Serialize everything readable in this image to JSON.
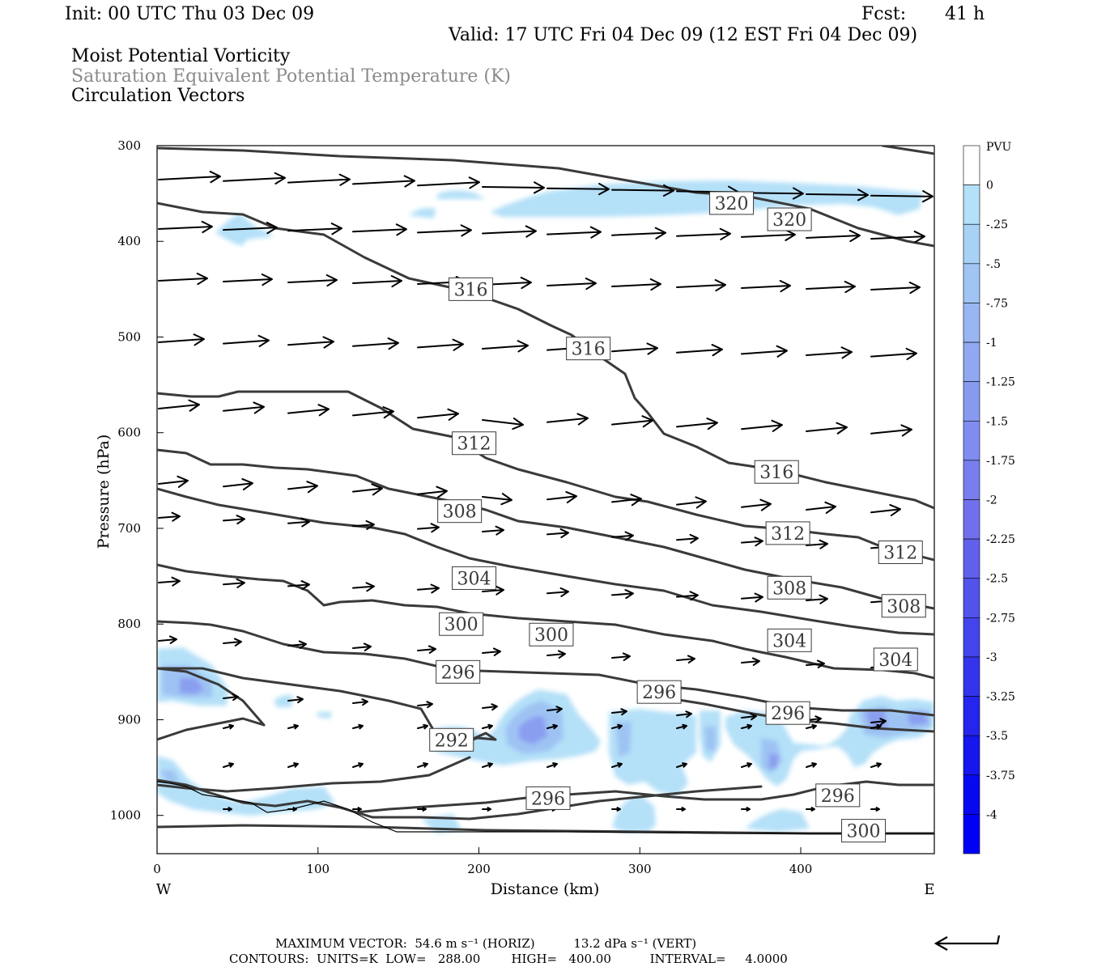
{
  "header": {
    "init": "Init: 00 UTC Thu 03 Dec 09",
    "fcst_label": "Fcst:",
    "fcst_value": "41 h",
    "valid": "Valid: 17 UTC Fri 04 Dec 09 (12 EST Fri 04 Dec 09)",
    "field1": "Moist Potential Vorticity",
    "field2": "Saturation Equivalent Potential Temperature (K)",
    "field3": "Circulation Vectors"
  },
  "footer": {
    "max_vector": "MAXIMUM VECTOR:  54.6 m s⁻¹ (HORIZ)          13.2 dPa s⁻¹ (VERT)",
    "contours": "CONTOURS:  UNITS=K  LOW=   288.00        HIGH=   400.00          INTERVAL=     4.0000"
  },
  "colors": {
    "contour": "#3a3a3a",
    "shade_light": "#b4e0f8",
    "shade_mid": "#9ec3f3",
    "shade_dark": "#8a9ef0"
  },
  "chart_data": {
    "type": "cross-section",
    "xlabel": "Distance (km)",
    "ylabel": "Pressure (hPa)",
    "x_range": [
      0,
      483
    ],
    "y_range": [
      1040,
      300
    ],
    "x_ticks": [
      0,
      100,
      200,
      300,
      400
    ],
    "y_ticks": [
      300,
      400,
      500,
      600,
      700,
      800,
      900,
      1000
    ],
    "x_end_labels": [
      "W",
      "E"
    ],
    "colorbar": {
      "unit": "PVU",
      "labels": [
        "0",
        "-.25",
        "-.5",
        "-.75",
        "-1",
        "-1.25",
        "-1.5",
        "-1.75",
        "-2",
        "-2.25",
        "-2.5",
        "-2.75",
        "-3",
        "-3.25",
        "-3.5",
        "-3.75",
        "-4"
      ],
      "colors": [
        "#ffffff",
        "#b4e0f8",
        "#a8d2f5",
        "#a0c4f3",
        "#98b6f2",
        "#90a8f0",
        "#889af0",
        "#808cef",
        "#787eee",
        "#7070ee",
        "#6060ed",
        "#5252ec",
        "#4444ec",
        "#3434ec",
        "#2525ed",
        "#1616ee",
        "#0808f0",
        "#0000f5"
      ]
    },
    "contour_labels": [
      {
        "text": "320",
        "x": 357,
        "p": 360
      },
      {
        "text": "320",
        "x": 393,
        "p": 377
      },
      {
        "text": "316",
        "x": 195,
        "p": 450
      },
      {
        "text": "316",
        "x": 268,
        "p": 512
      },
      {
        "text": "316",
        "x": 385,
        "p": 641
      },
      {
        "text": "312",
        "x": 197,
        "p": 611
      },
      {
        "text": "312",
        "x": 392,
        "p": 705
      },
      {
        "text": "312",
        "x": 462,
        "p": 725
      },
      {
        "text": "308",
        "x": 188,
        "p": 682
      },
      {
        "text": "308",
        "x": 393,
        "p": 762
      },
      {
        "text": "308",
        "x": 464,
        "p": 781
      },
      {
        "text": "304",
        "x": 197,
        "p": 752
      },
      {
        "text": "304",
        "x": 393,
        "p": 817
      },
      {
        "text": "304",
        "x": 459,
        "p": 837
      },
      {
        "text": "300",
        "x": 189,
        "p": 800
      },
      {
        "text": "300",
        "x": 245,
        "p": 811
      },
      {
        "text": "296",
        "x": 187,
        "p": 850
      },
      {
        "text": "296",
        "x": 312,
        "p": 871
      },
      {
        "text": "296",
        "x": 392,
        "p": 893
      },
      {
        "text": "296",
        "x": 243,
        "p": 982
      },
      {
        "text": "296",
        "x": 423,
        "p": 979
      },
      {
        "text": "292",
        "x": 183,
        "p": 921
      },
      {
        "text": "300",
        "x": 439,
        "p": 1016
      }
    ]
  }
}
